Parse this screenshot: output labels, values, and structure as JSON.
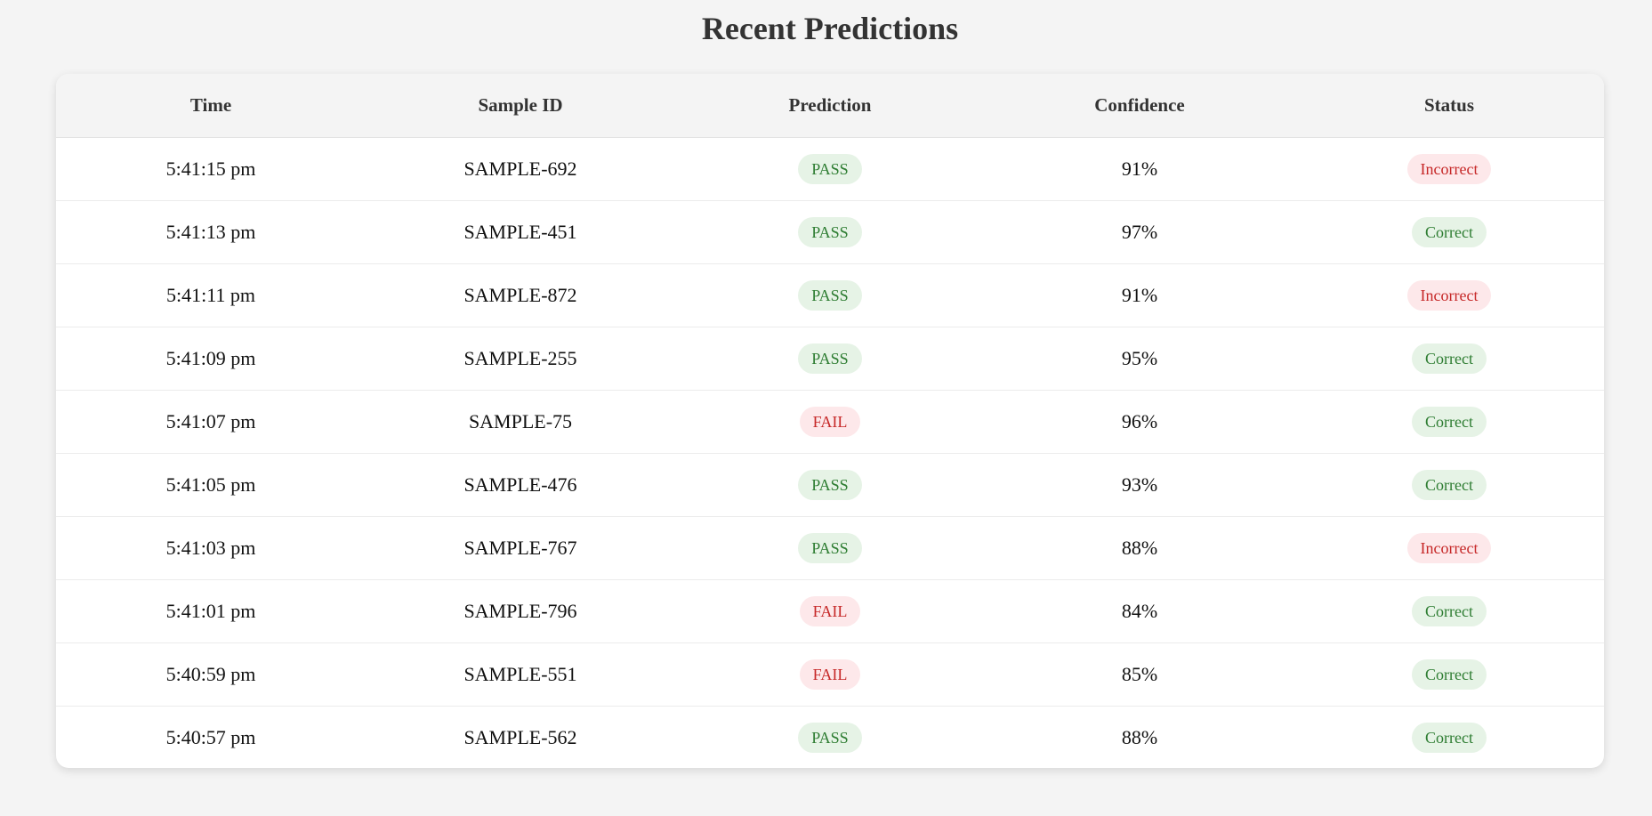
{
  "page": {
    "title": "Recent Predictions"
  },
  "table": {
    "headers": {
      "time": "Time",
      "sample_id": "Sample ID",
      "prediction": "Prediction",
      "confidence": "Confidence",
      "status": "Status"
    },
    "rows": [
      {
        "time": "5:41:15 pm",
        "sample_id": "SAMPLE-692",
        "prediction": "PASS",
        "confidence": "91%",
        "status": "Incorrect"
      },
      {
        "time": "5:41:13 pm",
        "sample_id": "SAMPLE-451",
        "prediction": "PASS",
        "confidence": "97%",
        "status": "Correct"
      },
      {
        "time": "5:41:11 pm",
        "sample_id": "SAMPLE-872",
        "prediction": "PASS",
        "confidence": "91%",
        "status": "Incorrect"
      },
      {
        "time": "5:41:09 pm",
        "sample_id": "SAMPLE-255",
        "prediction": "PASS",
        "confidence": "95%",
        "status": "Correct"
      },
      {
        "time": "5:41:07 pm",
        "sample_id": "SAMPLE-75",
        "prediction": "FAIL",
        "confidence": "96%",
        "status": "Correct"
      },
      {
        "time": "5:41:05 pm",
        "sample_id": "SAMPLE-476",
        "prediction": "PASS",
        "confidence": "93%",
        "status": "Correct"
      },
      {
        "time": "5:41:03 pm",
        "sample_id": "SAMPLE-767",
        "prediction": "PASS",
        "confidence": "88%",
        "status": "Incorrect"
      },
      {
        "time": "5:41:01 pm",
        "sample_id": "SAMPLE-796",
        "prediction": "FAIL",
        "confidence": "84%",
        "status": "Correct"
      },
      {
        "time": "5:40:59 pm",
        "sample_id": "SAMPLE-551",
        "prediction": "FAIL",
        "confidence": "85%",
        "status": "Correct"
      },
      {
        "time": "5:40:57 pm",
        "sample_id": "SAMPLE-562",
        "prediction": "PASS",
        "confidence": "88%",
        "status": "Correct"
      }
    ]
  },
  "colors": {
    "page_background": "#f4f4f4",
    "positive_badge_bg": "#e6f3e6",
    "positive_badge_text": "#2e7d32",
    "negative_badge_bg": "#fde8ea",
    "negative_badge_text": "#c62828"
  }
}
